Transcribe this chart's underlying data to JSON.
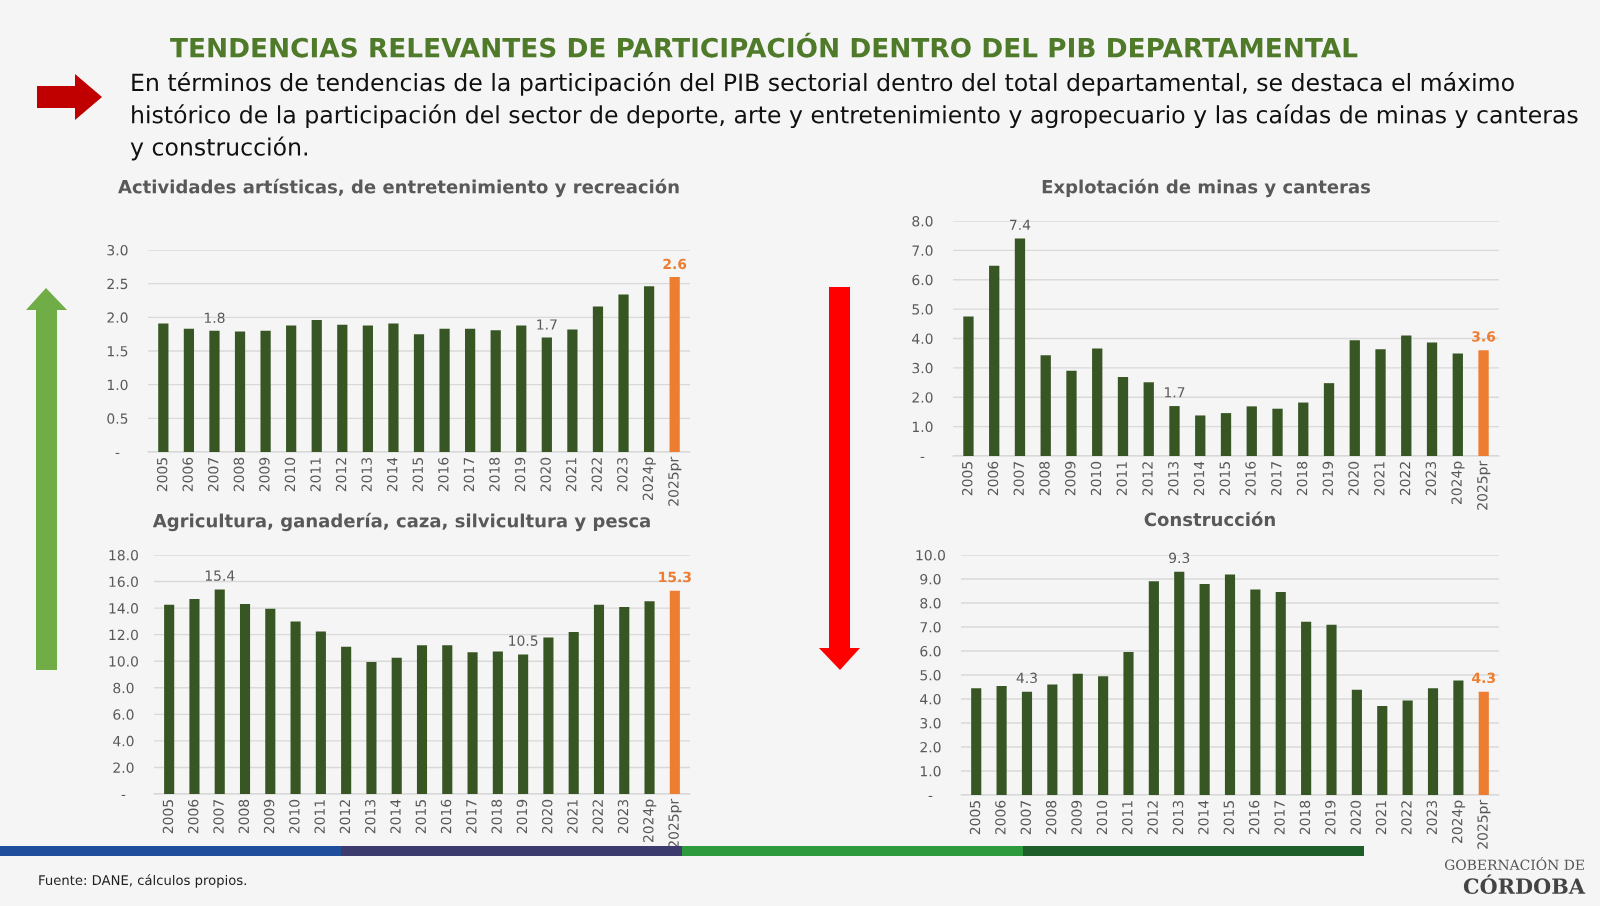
{
  "chart_data": [
    {
      "type": "other",
      "title": "TENDENCIAS RELEVANTES DE PARTICIPACIÓN DENTRO DEL PIB DEPARTAMENTAL",
      "subtitle": "En términos de tendencias de la participación del PIB sectorial dentro del total departamental, se destaca el máximo histórico de la participación del sector de deporte, arte y entretenimiento y agropecuario y las caídas de minas y canteras y construcción.",
      "annotations": [
        "Fuente: DANE, cálculos propios.",
        "GOBERNACIÓN DE",
        "CÓRDOBA"
      ]
    },
    {
      "type": "bar",
      "title": "Actividades artísticas, de entretenimiento y recreación",
      "categories": [
        "2005",
        "2006",
        "2007",
        "2008",
        "2009",
        "2010",
        "2011",
        "2012",
        "2013",
        "2014",
        "2015",
        "2016",
        "2017",
        "2018",
        "2019",
        "2020",
        "2021",
        "2022",
        "2023",
        "2024p",
        "2025pr"
      ],
      "values": [
        1.91,
        1.83,
        1.8,
        1.79,
        1.8,
        1.88,
        1.96,
        1.89,
        1.88,
        1.91,
        1.75,
        1.83,
        1.83,
        1.81,
        1.88,
        1.7,
        1.82,
        2.16,
        2.34,
        2.46,
        2.6
      ],
      "colors": [
        "#375623",
        "#375623",
        "#375623",
        "#375623",
        "#375623",
        "#375623",
        "#375623",
        "#375623",
        "#375623",
        "#375623",
        "#375623",
        "#375623",
        "#375623",
        "#375623",
        "#375623",
        "#375623",
        "#375623",
        "#375623",
        "#375623",
        "#375623",
        "#ed7d31"
      ],
      "value_labels": [
        null,
        null,
        "1.8",
        null,
        null,
        null,
        null,
        null,
        null,
        null,
        null,
        null,
        null,
        null,
        null,
        "1.7",
        null,
        null,
        null,
        null,
        "2.6"
      ],
      "ylim": [
        0,
        3.0
      ],
      "yticks": [
        {
          "value": 0,
          "label": "-"
        },
        {
          "value": 0.5,
          "label": "0.5"
        },
        {
          "value": 1.0,
          "label": "1.0"
        },
        {
          "value": 1.5,
          "label": "1.5"
        },
        {
          "value": 2.0,
          "label": "2.0"
        },
        {
          "value": 2.5,
          "label": "2.5"
        },
        {
          "value": 3.0,
          "label": "3.0"
        }
      ],
      "grid": "y",
      "legend": false
    },
    {
      "type": "bar",
      "title": "Explotación de minas y canteras",
      "categories": [
        "2005",
        "2006",
        "2007",
        "2008",
        "2009",
        "2010",
        "2011",
        "2012",
        "2013",
        "2014",
        "2015",
        "2016",
        "2017",
        "2018",
        "2019",
        "2020",
        "2021",
        "2022",
        "2023",
        "2024p",
        "2025pr"
      ],
      "values": [
        4.75,
        6.48,
        7.4,
        3.43,
        2.9,
        3.66,
        2.69,
        2.51,
        1.7,
        1.38,
        1.46,
        1.69,
        1.61,
        1.82,
        2.48,
        3.94,
        3.63,
        4.1,
        3.86,
        3.49,
        3.6
      ],
      "colors": [
        "#375623",
        "#375623",
        "#375623",
        "#375623",
        "#375623",
        "#375623",
        "#375623",
        "#375623",
        "#375623",
        "#375623",
        "#375623",
        "#375623",
        "#375623",
        "#375623",
        "#375623",
        "#375623",
        "#375623",
        "#375623",
        "#375623",
        "#375623",
        "#ed7d31"
      ],
      "value_labels": [
        null,
        null,
        "7.4",
        null,
        null,
        null,
        null,
        null,
        "1.7",
        null,
        null,
        null,
        null,
        null,
        null,
        null,
        null,
        null,
        null,
        null,
        "3.6"
      ],
      "ylim": [
        0,
        8.0
      ],
      "yticks": [
        {
          "value": 0,
          "label": "-"
        },
        {
          "value": 1,
          "label": "1.0"
        },
        {
          "value": 2,
          "label": "2.0"
        },
        {
          "value": 3,
          "label": "3.0"
        },
        {
          "value": 4,
          "label": "4.0"
        },
        {
          "value": 5,
          "label": "5.0"
        },
        {
          "value": 6,
          "label": "6.0"
        },
        {
          "value": 7,
          "label": "7.0"
        },
        {
          "value": 8,
          "label": "8.0"
        }
      ],
      "grid": "y",
      "legend": false
    },
    {
      "type": "bar",
      "title": "Agricultura, ganadería, caza, silvicultura y pesca",
      "categories": [
        "2005",
        "2006",
        "2007",
        "2008",
        "2009",
        "2010",
        "2011",
        "2012",
        "2013",
        "2014",
        "2015",
        "2016",
        "2017",
        "2018",
        "2019",
        "2020",
        "2021",
        "2022",
        "2023",
        "2024p",
        "2025pr"
      ],
      "values": [
        14.25,
        14.69,
        15.4,
        14.31,
        13.96,
        12.99,
        12.23,
        11.09,
        9.95,
        10.27,
        11.21,
        11.21,
        10.68,
        10.74,
        10.5,
        11.79,
        12.2,
        14.25,
        14.08,
        14.52,
        15.3
      ],
      "colors": [
        "#375623",
        "#375623",
        "#375623",
        "#375623",
        "#375623",
        "#375623",
        "#375623",
        "#375623",
        "#375623",
        "#375623",
        "#375623",
        "#375623",
        "#375623",
        "#375623",
        "#375623",
        "#375623",
        "#375623",
        "#375623",
        "#375623",
        "#375623",
        "#ed7d31"
      ],
      "value_labels": [
        null,
        null,
        "15.4",
        null,
        null,
        null,
        null,
        null,
        null,
        null,
        null,
        null,
        null,
        null,
        "10.5",
        null,
        null,
        null,
        null,
        null,
        "15.3"
      ],
      "ylim": [
        0,
        18.0
      ],
      "yticks": [
        {
          "value": 0,
          "label": "-"
        },
        {
          "value": 2,
          "label": "2.0"
        },
        {
          "value": 4,
          "label": "4.0"
        },
        {
          "value": 6,
          "label": "6.0"
        },
        {
          "value": 8,
          "label": "8.0"
        },
        {
          "value": 10,
          "label": "10.0"
        },
        {
          "value": 12,
          "label": "12.0"
        },
        {
          "value": 14,
          "label": "14.0"
        },
        {
          "value": 16,
          "label": "16.0"
        },
        {
          "value": 18,
          "label": "18.0"
        }
      ],
      "grid": "y",
      "legend": false
    },
    {
      "type": "bar",
      "title": "Construcción",
      "categories": [
        "2005",
        "2006",
        "2007",
        "2008",
        "2009",
        "2010",
        "2011",
        "2012",
        "2013",
        "2014",
        "2015",
        "2016",
        "2017",
        "2018",
        "2019",
        "2020",
        "2021",
        "2022",
        "2023",
        "2024p",
        "2025pr"
      ],
      "values": [
        4.45,
        4.54,
        4.3,
        4.6,
        5.05,
        4.95,
        5.96,
        8.91,
        9.3,
        8.79,
        9.19,
        8.56,
        8.46,
        7.22,
        7.09,
        4.39,
        3.71,
        3.94,
        4.45,
        4.77,
        4.3
      ],
      "colors": [
        "#375623",
        "#375623",
        "#375623",
        "#375623",
        "#375623",
        "#375623",
        "#375623",
        "#375623",
        "#375623",
        "#375623",
        "#375623",
        "#375623",
        "#375623",
        "#375623",
        "#375623",
        "#375623",
        "#375623",
        "#375623",
        "#375623",
        "#375623",
        "#ed7d31"
      ],
      "value_labels": [
        null,
        null,
        "4.3",
        null,
        null,
        null,
        null,
        null,
        "9.3",
        null,
        null,
        null,
        null,
        null,
        null,
        null,
        null,
        null,
        null,
        null,
        "4.3"
      ],
      "ylim": [
        0,
        10.0
      ],
      "yticks": [
        {
          "value": 0,
          "label": "-"
        },
        {
          "value": 1,
          "label": "1.0"
        },
        {
          "value": 2,
          "label": "2.0"
        },
        {
          "value": 3,
          "label": "3.0"
        },
        {
          "value": 4,
          "label": "4.0"
        },
        {
          "value": 5,
          "label": "5.0"
        },
        {
          "value": 6,
          "label": "6.0"
        },
        {
          "value": 7,
          "label": "7.0"
        },
        {
          "value": 8,
          "label": "8.0"
        },
        {
          "value": 9,
          "label": "9.0"
        },
        {
          "value": 10,
          "label": "10.0"
        }
      ],
      "grid": "y",
      "legend": false
    }
  ]
}
